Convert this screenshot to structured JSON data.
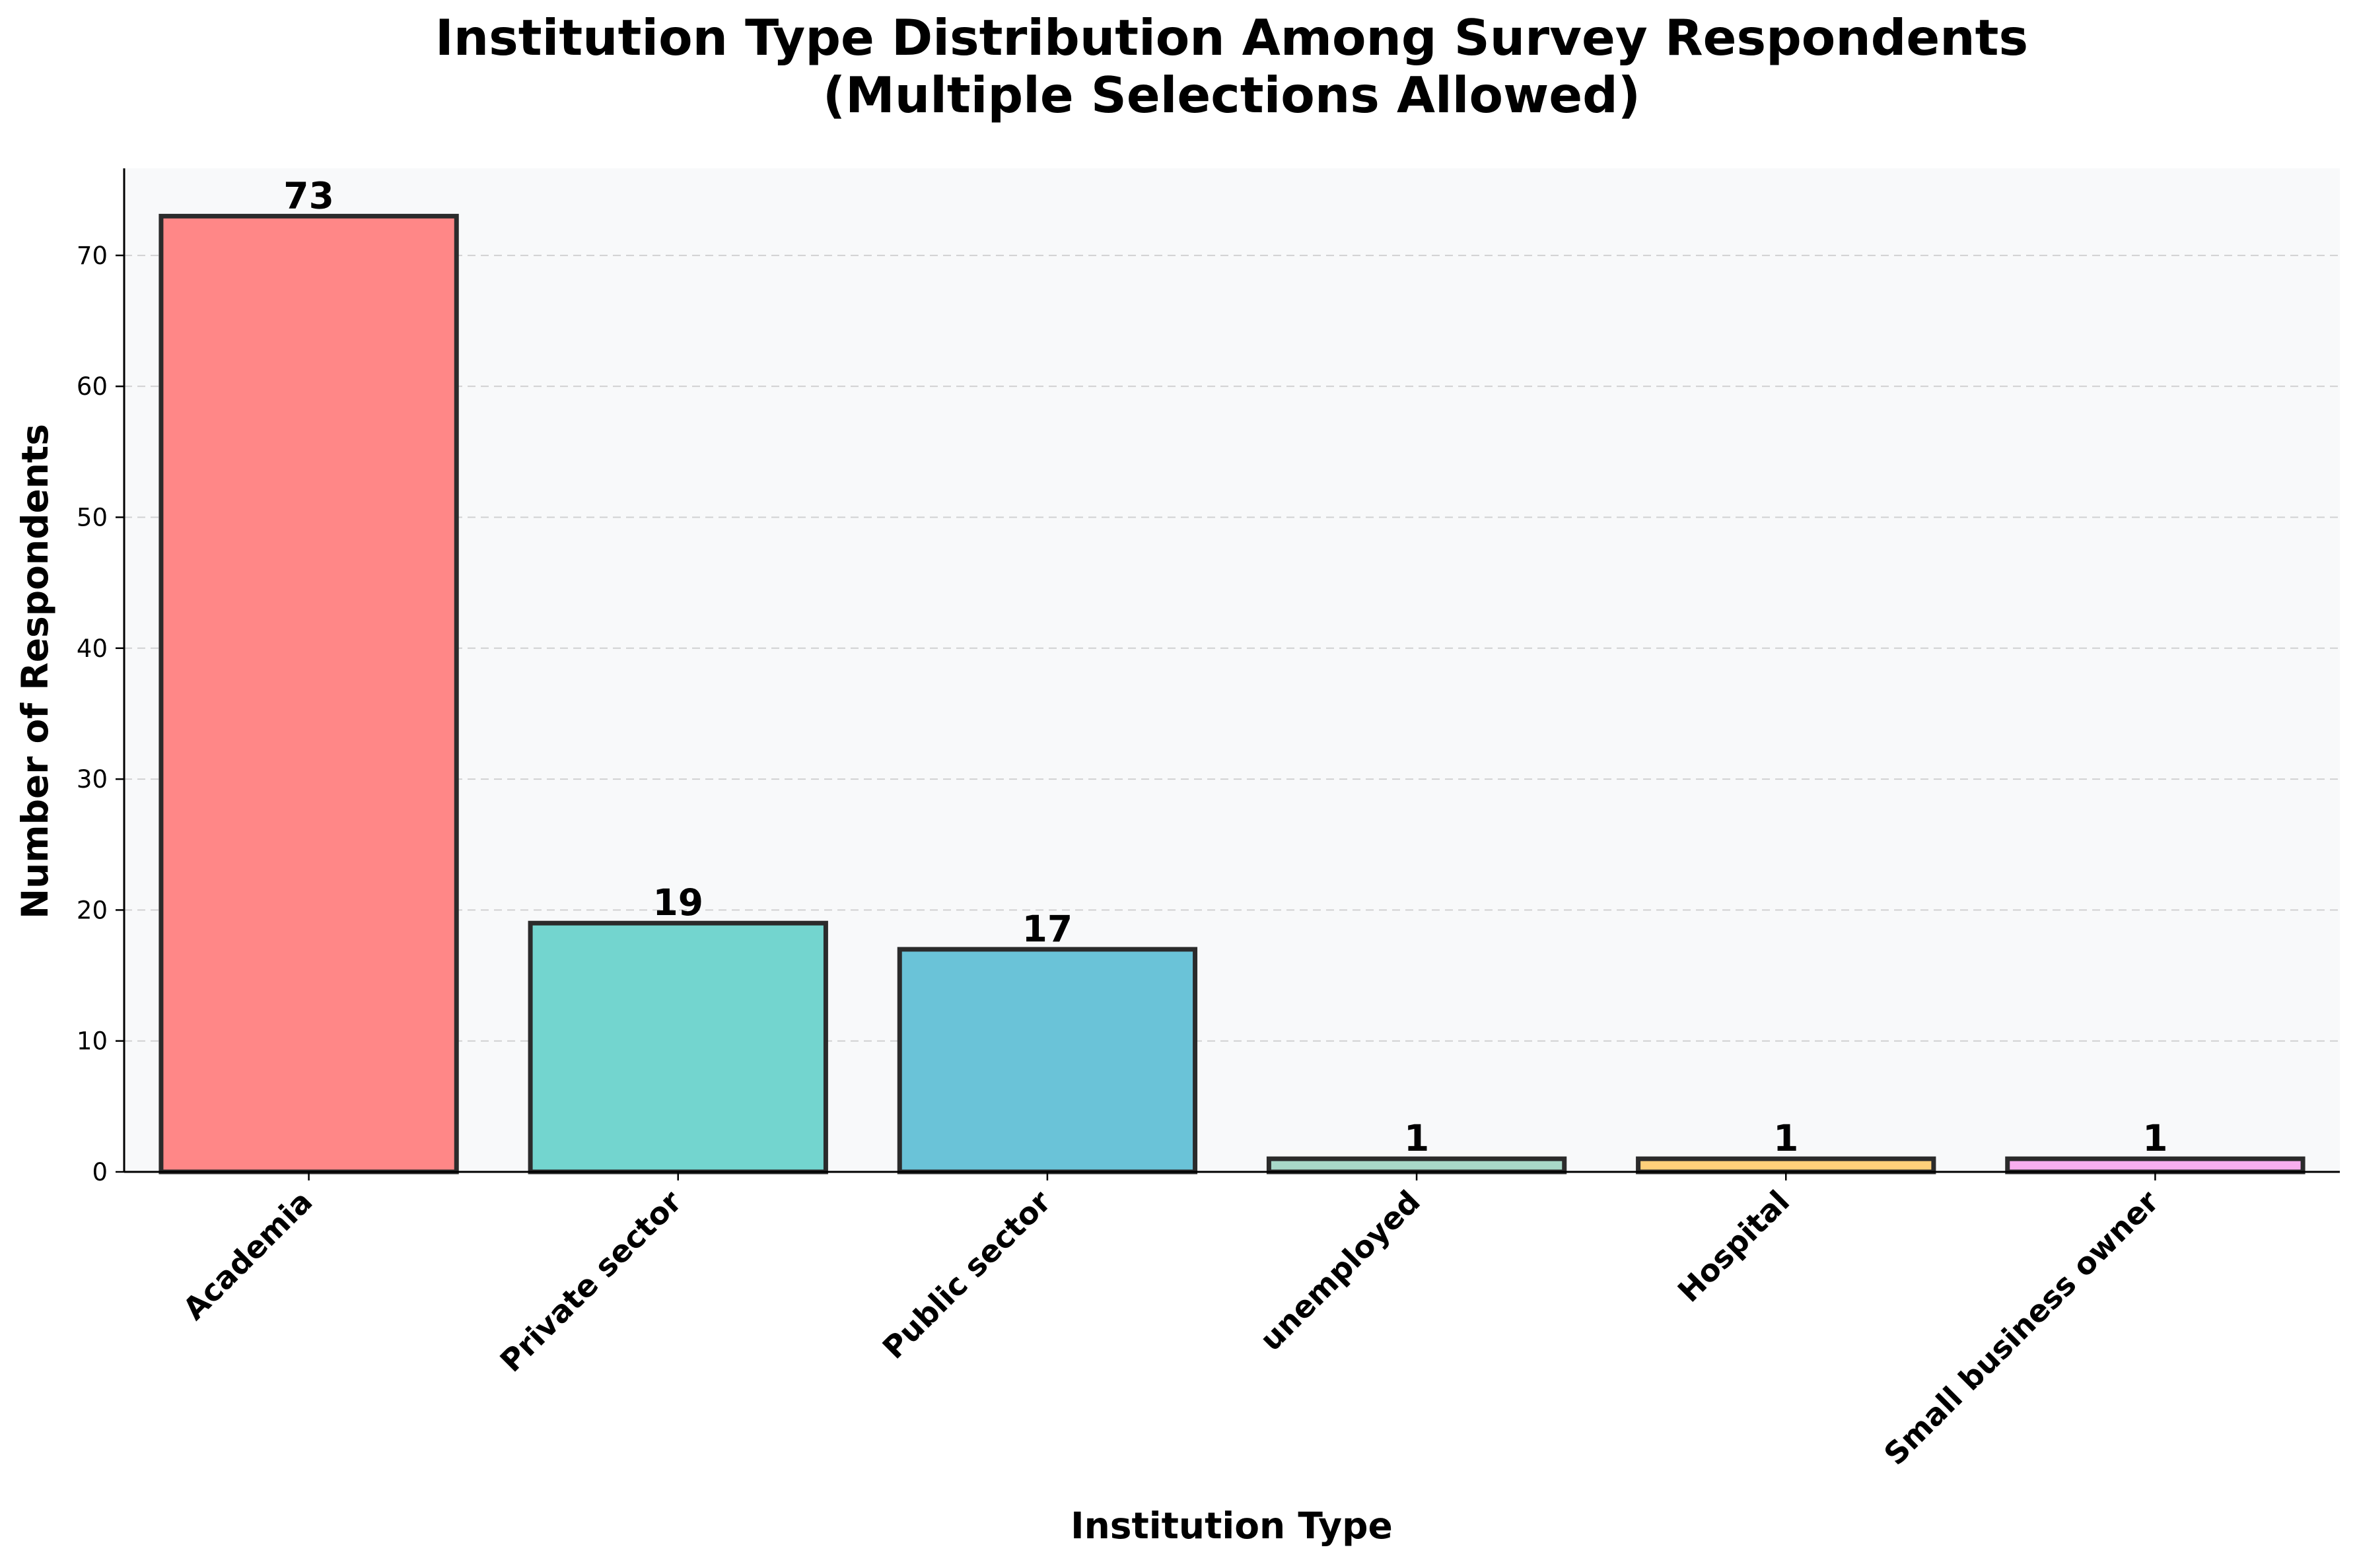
{
  "chart_data": {
    "type": "bar",
    "title": "Institution Type Distribution Among Survey Respondents",
    "subtitle": "(Multiple Selections Allowed)",
    "xlabel": "Institution Type",
    "ylabel": "Number of Respondents",
    "categories": [
      "Academia",
      "Private sector",
      "Public sector",
      "unemployed",
      "Hospital",
      "Small business owner"
    ],
    "values": [
      73,
      19,
      17,
      1,
      1,
      1
    ],
    "data_labels": [
      "73",
      "19",
      "17",
      "1",
      "1",
      "1"
    ],
    "colors": [
      "#FF8787",
      "#73D5CF",
      "#6AC3D8",
      "#A8D8C8",
      "#FFD07A",
      "#F7AEEF"
    ],
    "yticks": [
      "0",
      "10",
      "20",
      "30",
      "40",
      "50",
      "60",
      "70"
    ],
    "ylim": [
      0,
      76.65
    ],
    "grid": "y-dashed",
    "legend": "none",
    "background": "#F8F9FA",
    "edge_color": "#2B2B2B"
  }
}
